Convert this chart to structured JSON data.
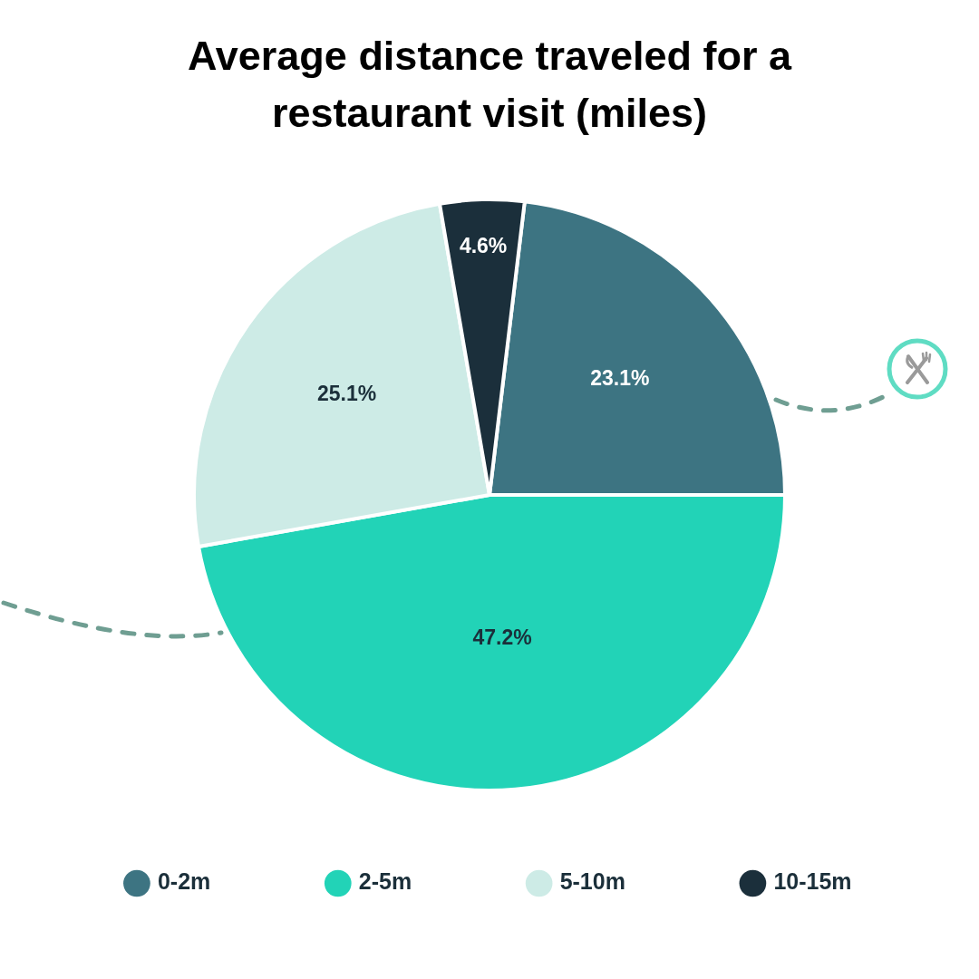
{
  "chart_data": {
    "type": "pie",
    "title": "Average distance traveled for a restaurant visit (miles)",
    "categories": [
      "0-2m",
      "2-5m",
      "5-10m",
      "10-15m"
    ],
    "values": [
      23.1,
      47.2,
      25.1,
      4.6
    ],
    "colors": [
      "#3d7482",
      "#22d3b7",
      "#cdebe6",
      "#1b2f3b"
    ],
    "value_labels": [
      "23.1%",
      "47.2%",
      "25.1%",
      "4.6%"
    ],
    "legend": "bottom"
  }
}
